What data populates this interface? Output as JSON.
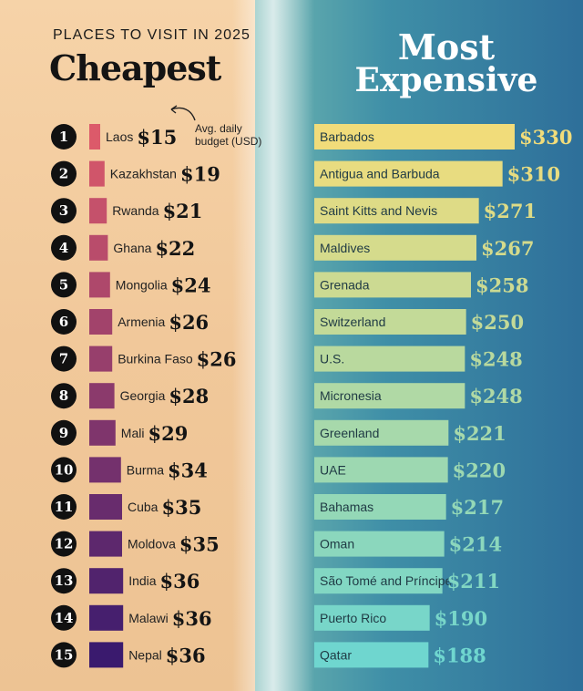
{
  "header": {
    "kicker": "PLACES TO VISIT IN 2025",
    "left_title": "Cheapest",
    "right_title_line1": "Most",
    "right_title_line2": "Expensive",
    "note_line1": "Avg. daily",
    "note_line2": "budget (USD)"
  },
  "colors": {
    "cheap_start": "#dc5a6a",
    "cheap_end": "#3a1a6e",
    "exp_start": "#f1dc7a",
    "exp_end": "#6fd6cf"
  },
  "chart_data": [
    {
      "type": "bar",
      "title": "Cheapest",
      "ranks": [
        "1",
        "2",
        "3",
        "4",
        "5",
        "6",
        "7",
        "8",
        "9",
        "10",
        "11",
        "12",
        "13",
        "14",
        "15"
      ],
      "categories": [
        "Laos",
        "Kazakhstan",
        "Rwanda",
        "Ghana",
        "Mongolia",
        "Armenia",
        "Burkina Faso",
        "Georgia",
        "Mali",
        "Burma",
        "Cuba",
        "Moldova",
        "India",
        "Malawi",
        "Nepal"
      ],
      "values": [
        15,
        19,
        21,
        22,
        24,
        26,
        26,
        28,
        29,
        34,
        35,
        35,
        36,
        36,
        36
      ],
      "labels": [
        "$15",
        "$19",
        "$21",
        "$22",
        "$24",
        "$26",
        "$26",
        "$28",
        "$29",
        "$34",
        "$35",
        "$35",
        "$36",
        "$36",
        "$36"
      ]
    },
    {
      "type": "bar",
      "title": "Most Expensive",
      "categories": [
        "Barbados",
        "Antigua and Barbuda",
        "Saint Kitts and Nevis",
        "Maldives",
        "Grenada",
        "Switzerland",
        "U.S.",
        "Micronesia",
        "Greenland",
        "UAE",
        "Bahamas",
        "Oman",
        "São Tomé and Príncipe",
        "Puerto Rico",
        "Qatar"
      ],
      "values": [
        330,
        310,
        271,
        267,
        258,
        250,
        248,
        248,
        221,
        220,
        217,
        214,
        211,
        190,
        188
      ],
      "labels": [
        "$330",
        "$310",
        "$271",
        "$267",
        "$258",
        "$250",
        "$248",
        "$248",
        "$221",
        "$220",
        "$217",
        "$214",
        "$211",
        "$190",
        "$188"
      ]
    }
  ]
}
